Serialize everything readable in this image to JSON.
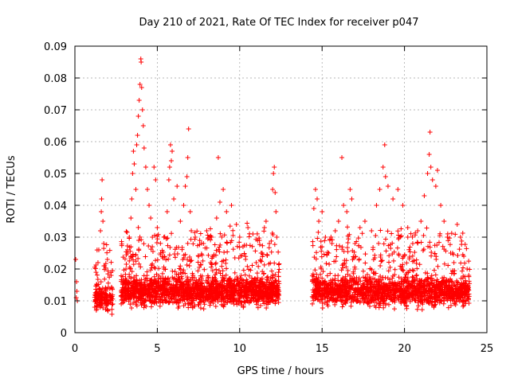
{
  "chart_data": {
    "type": "scatter",
    "title": "Day 210 of 2021, Rate Of TEC Index for receiver p047",
    "xlabel": "GPS time / hours",
    "ylabel": "ROTI / TECUs",
    "xlim": [
      0,
      25
    ],
    "ylim": [
      0,
      0.09
    ],
    "xticks": [
      0,
      5,
      10,
      15,
      20,
      25
    ],
    "xtick_labels": [
      "0",
      "5",
      "10",
      "15",
      "20",
      "25"
    ],
    "yticks": [
      0,
      0.01,
      0.02,
      0.03,
      0.04,
      0.05,
      0.06,
      0.07,
      0.08,
      0.09
    ],
    "ytick_labels": [
      "0",
      "0.01",
      "0.02",
      "0.03",
      "0.04",
      "0.05",
      "0.06",
      "0.07",
      "0.08",
      "0.09"
    ],
    "grid": true,
    "marker": "plus",
    "color": "#ff0000",
    "series": [
      {
        "name": "p047",
        "points": [
          [
            0.05,
            0.023
          ],
          [
            0.08,
            0.011
          ],
          [
            0.1,
            0.016
          ],
          [
            0.12,
            0.013
          ],
          [
            0.15,
            0.01
          ],
          [
            1.2,
            0.008
          ],
          [
            1.3,
            0.012
          ],
          [
            1.35,
            0.015
          ],
          [
            1.4,
            0.022
          ],
          [
            1.45,
            0.026
          ],
          [
            1.5,
            0.009
          ],
          [
            1.55,
            0.032
          ],
          [
            1.6,
            0.038
          ],
          [
            1.62,
            0.042
          ],
          [
            1.65,
            0.048
          ],
          [
            1.7,
            0.035
          ],
          [
            1.75,
            0.028
          ],
          [
            1.8,
            0.021
          ],
          [
            1.85,
            0.014
          ],
          [
            1.9,
            0.01
          ],
          [
            2.0,
            0.007
          ],
          [
            2.1,
            0.012
          ],
          [
            2.2,
            0.018
          ],
          [
            2.3,
            0.009
          ],
          [
            2.9,
            0.011
          ],
          [
            3.0,
            0.015
          ],
          [
            3.1,
            0.02
          ],
          [
            3.2,
            0.025
          ],
          [
            3.3,
            0.03
          ],
          [
            3.4,
            0.036
          ],
          [
            3.45,
            0.042
          ],
          [
            3.5,
            0.05
          ],
          [
            3.55,
            0.057
          ],
          [
            3.6,
            0.053
          ],
          [
            3.7,
            0.045
          ],
          [
            3.75,
            0.059
          ],
          [
            3.8,
            0.062
          ],
          [
            3.85,
            0.068
          ],
          [
            3.9,
            0.073
          ],
          [
            3.95,
            0.078
          ],
          [
            4.0,
            0.086
          ],
          [
            4.02,
            0.085
          ],
          [
            4.05,
            0.077
          ],
          [
            4.1,
            0.07
          ],
          [
            4.15,
            0.065
          ],
          [
            4.2,
            0.058
          ],
          [
            4.3,
            0.052
          ],
          [
            4.4,
            0.045
          ],
          [
            4.5,
            0.04
          ],
          [
            4.6,
            0.036
          ],
          [
            4.7,
            0.03
          ],
          [
            4.8,
            0.052
          ],
          [
            4.9,
            0.048
          ],
          [
            5.0,
            0.033
          ],
          [
            5.2,
            0.025
          ],
          [
            5.4,
            0.03
          ],
          [
            5.6,
            0.038
          ],
          [
            5.7,
            0.048
          ],
          [
            5.75,
            0.052
          ],
          [
            5.8,
            0.059
          ],
          [
            5.85,
            0.054
          ],
          [
            5.9,
            0.057
          ],
          [
            6.0,
            0.042
          ],
          [
            6.2,
            0.046
          ],
          [
            6.4,
            0.035
          ],
          [
            6.6,
            0.04
          ],
          [
            6.7,
            0.046
          ],
          [
            6.8,
            0.049
          ],
          [
            6.85,
            0.055
          ],
          [
            6.9,
            0.064
          ],
          [
            7.0,
            0.038
          ],
          [
            7.3,
            0.03
          ],
          [
            7.5,
            0.024
          ],
          [
            7.8,
            0.028
          ],
          [
            8.0,
            0.032
          ],
          [
            8.3,
            0.03
          ],
          [
            8.6,
            0.036
          ],
          [
            8.7,
            0.055
          ],
          [
            8.8,
            0.041
          ],
          [
            9.0,
            0.045
          ],
          [
            9.2,
            0.038
          ],
          [
            9.5,
            0.04
          ],
          [
            9.8,
            0.034
          ],
          [
            10.0,
            0.03
          ],
          [
            10.2,
            0.027
          ],
          [
            10.5,
            0.033
          ],
          [
            10.8,
            0.031
          ],
          [
            11.0,
            0.022
          ],
          [
            11.3,
            0.025
          ],
          [
            11.5,
            0.033
          ],
          [
            11.6,
            0.035
          ],
          [
            11.8,
            0.028
          ],
          [
            12.0,
            0.045
          ],
          [
            12.05,
            0.05
          ],
          [
            12.1,
            0.052
          ],
          [
            12.15,
            0.044
          ],
          [
            12.2,
            0.038
          ],
          [
            12.25,
            0.03
          ],
          [
            14.5,
            0.039
          ],
          [
            14.6,
            0.045
          ],
          [
            14.7,
            0.042
          ],
          [
            14.8,
            0.035
          ],
          [
            15.0,
            0.038
          ],
          [
            15.2,
            0.03
          ],
          [
            15.4,
            0.025
          ],
          [
            15.6,
            0.028
          ],
          [
            15.8,
            0.032
          ],
          [
            16.0,
            0.035
          ],
          [
            16.2,
            0.055
          ],
          [
            16.3,
            0.04
          ],
          [
            16.5,
            0.038
          ],
          [
            16.7,
            0.045
          ],
          [
            16.8,
            0.042
          ],
          [
            17.0,
            0.028
          ],
          [
            17.3,
            0.033
          ],
          [
            17.6,
            0.035
          ],
          [
            18.0,
            0.032
          ],
          [
            18.3,
            0.04
          ],
          [
            18.5,
            0.045
          ],
          [
            18.7,
            0.052
          ],
          [
            18.8,
            0.059
          ],
          [
            18.85,
            0.049
          ],
          [
            19.0,
            0.046
          ],
          [
            19.3,
            0.042
          ],
          [
            19.6,
            0.045
          ],
          [
            19.9,
            0.04
          ],
          [
            20.2,
            0.03
          ],
          [
            20.5,
            0.028
          ],
          [
            20.8,
            0.032
          ],
          [
            21.0,
            0.035
          ],
          [
            21.2,
            0.043
          ],
          [
            21.4,
            0.05
          ],
          [
            21.5,
            0.056
          ],
          [
            21.55,
            0.063
          ],
          [
            21.6,
            0.052
          ],
          [
            21.7,
            0.048
          ],
          [
            21.9,
            0.046
          ],
          [
            22.0,
            0.051
          ],
          [
            22.2,
            0.04
          ],
          [
            22.4,
            0.035
          ],
          [
            22.6,
            0.03
          ],
          [
            22.8,
            0.025
          ],
          [
            23.0,
            0.022
          ],
          [
            23.2,
            0.034
          ],
          [
            23.4,
            0.03
          ],
          [
            23.6,
            0.024
          ],
          [
            23.8,
            0.02
          ],
          [
            23.9,
            0.018
          ]
        ]
      }
    ],
    "dense_segments": [
      {
        "x": [
          1.2,
          2.3
        ],
        "y_center": 0.011,
        "y_spread": 0.004,
        "n": 170
      },
      {
        "x": [
          2.8,
          12.4
        ],
        "y_center": 0.013,
        "y_spread": 0.004,
        "n": 1900
      },
      {
        "x": [
          14.4,
          23.95
        ],
        "y_center": 0.013,
        "y_spread": 0.004,
        "n": 1700
      }
    ]
  }
}
